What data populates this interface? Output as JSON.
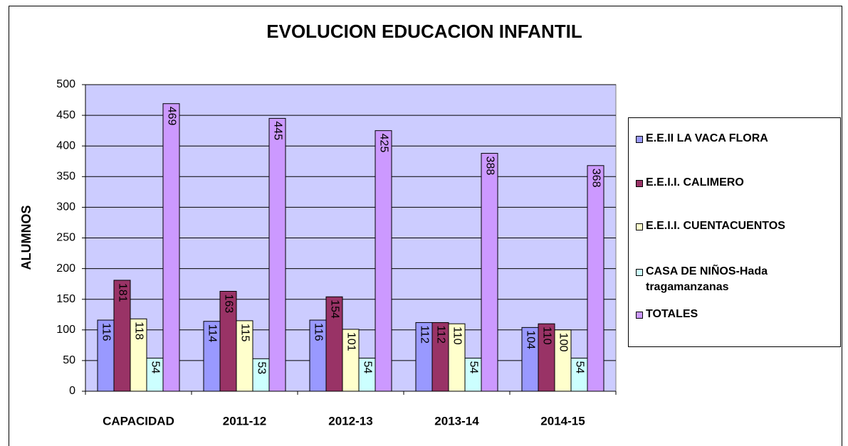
{
  "chart_data": {
    "type": "bar",
    "title": "EVOLUCION EDUCACION INFANTIL",
    "y_label": "ALUMNOS",
    "categories": [
      "CAPACIDAD",
      "2011-12",
      "2012-13",
      "2013-14",
      "2014-15"
    ],
    "series": [
      {
        "name": "E.E.II LA VACA FLORA",
        "color": "#9999ff",
        "values": [
          116,
          114,
          116,
          112,
          104
        ]
      },
      {
        "name": "E.E.I.I. CALIMERO",
        "color": "#993366",
        "values": [
          181,
          163,
          154,
          112,
          110
        ]
      },
      {
        "name": "E.E.I.I. CUENTACUENTOS",
        "color": "#ffffcc",
        "values": [
          118,
          115,
          101,
          110,
          100
        ]
      },
      {
        "name": "CASA DE NIÑOS-Hada tragamanzanas",
        "color": "#ccffff",
        "values": [
          54,
          53,
          54,
          54,
          54
        ]
      },
      {
        "name": "TOTALES",
        "color": "#cc99ff",
        "values": [
          469,
          445,
          425,
          388,
          368
        ]
      }
    ],
    "ylim": [
      0,
      500
    ],
    "yticks": [
      0,
      50,
      100,
      150,
      200,
      250,
      300,
      350,
      400,
      450,
      500
    ],
    "grid": true,
    "legend": "right",
    "plot_background": "#ccccff"
  }
}
